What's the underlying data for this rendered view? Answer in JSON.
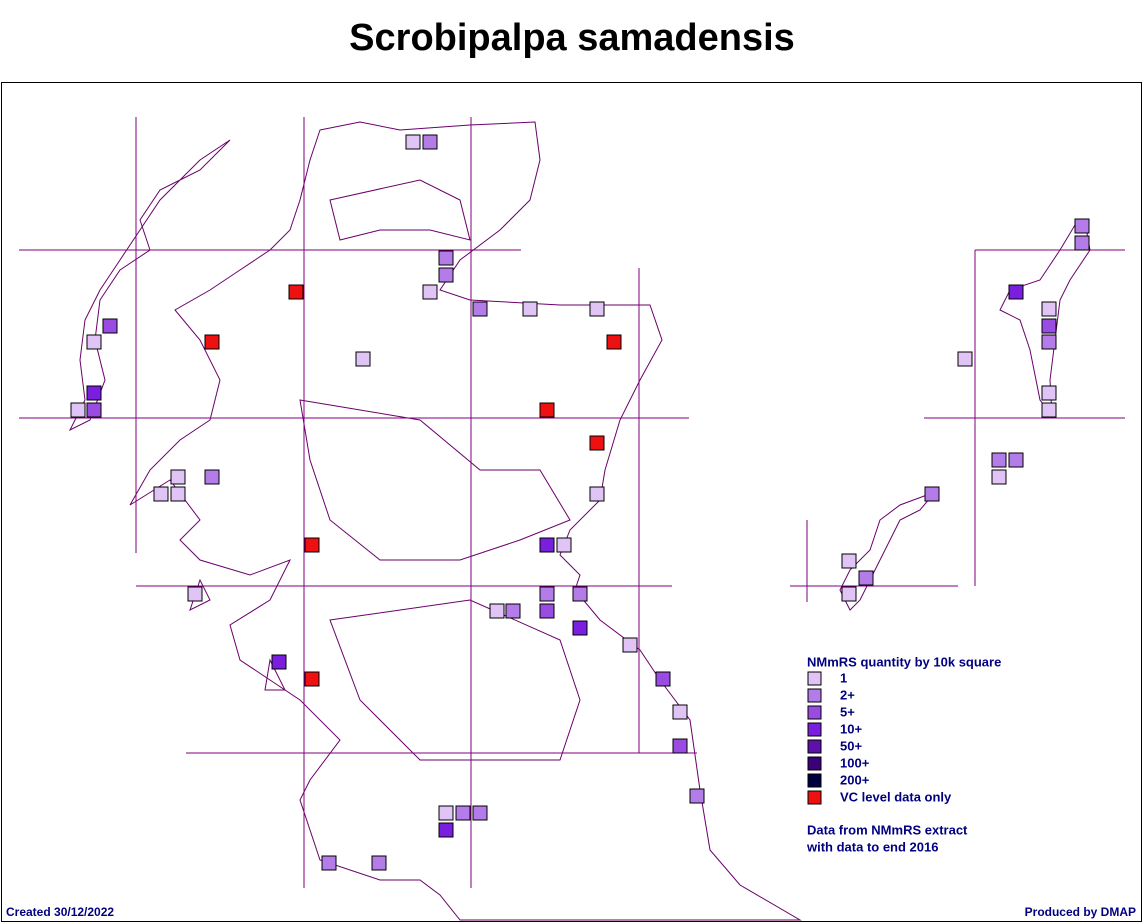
{
  "title": "Scrobipalpa samadensis",
  "legend": {
    "title": "NMmRS quantity by 10k square",
    "items": [
      {
        "label": "1",
        "color": "#e0c4f6"
      },
      {
        "label": "2+",
        "color": "#b47ce8"
      },
      {
        "label": "5+",
        "color": "#9a4ce2"
      },
      {
        "label": "10+",
        "color": "#7a1ee0"
      },
      {
        "label": "50+",
        "color": "#5e10ac"
      },
      {
        "label": "100+",
        "color": "#3c0078"
      },
      {
        "label": "200+",
        "color": "#000040"
      },
      {
        "label": "VC level data only",
        "color": "#ee1111"
      }
    ]
  },
  "note": [
    "Data from NMmRS extract",
    "with data to end 2016"
  ],
  "footer": {
    "created": "Created 30/12/2022",
    "producer": "Produced by DMAP"
  }
}
